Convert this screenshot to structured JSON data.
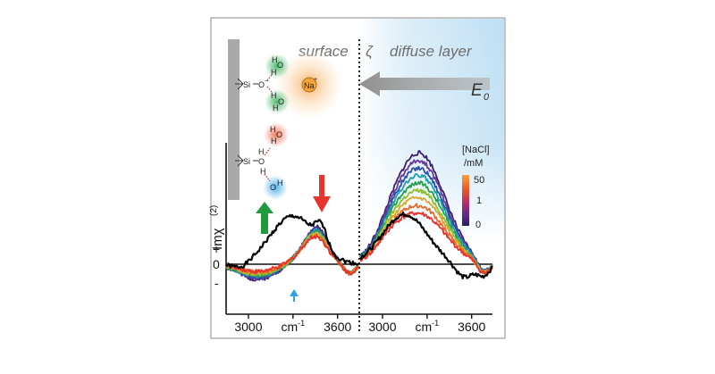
{
  "figure": {
    "region_surface": "surface",
    "region_zeta": "ζ",
    "region_diffuse": "diffuse layer",
    "field_label": "E",
    "field_sub": "0",
    "ion_label": "Na",
    "ion_charge": "+",
    "y_axis_label": "Imχ",
    "y_axis_sup": "(2)",
    "y_plus": "+",
    "y_zero": "0",
    "y_minus": "-",
    "colorbar_title_1": "[NaCl]",
    "colorbar_title_2": "/mM",
    "colorbar_ticks": [
      "50",
      "1",
      "0"
    ],
    "molecules": {
      "si": "Si",
      "o": "O",
      "o_minus": "−",
      "h": "H",
      "water_o": "O",
      "water_h": "H",
      "oh_o": "O",
      "oh_h": "H"
    },
    "colors": {
      "surface_bg": "#ffffff",
      "diffuse_bg": "#cfe7f6",
      "wall": "#a9a9a9",
      "arrow_gray": "#8c8c8c",
      "arrow_red": "#e8352b",
      "arrow_green": "#1f9a3c",
      "arrow_blue": "#2aa3e0",
      "ion_glow": "#f6b067",
      "ion_core": "#f2a33a"
    }
  },
  "chart_data": {
    "type": "line",
    "panels": [
      {
        "name": "surface",
        "x_ticks": [
          "3000",
          "cm-1",
          "3600"
        ],
        "x_tick_values": [
          3000,
          3300,
          3600
        ],
        "xlim": [
          2850,
          3740
        ],
        "ylim": [
          -1.0,
          2.7
        ],
        "zero_line": 0
      },
      {
        "name": "diffuse layer",
        "x_ticks": [
          "3000",
          "cm-1",
          "3600"
        ],
        "x_tick_values": [
          3000,
          3300,
          3600
        ],
        "xlim": [
          2850,
          3740
        ],
        "ylim": [
          -1.0,
          2.7
        ],
        "zero_line": 0
      }
    ],
    "colorbar": {
      "label": "[NaCl] /mM",
      "ticks": [
        "50",
        "1",
        "0"
      ],
      "colors": [
        "#f9a23a",
        "#e8542a",
        "#b52d6a",
        "#5b2a8a",
        "#2a1f5e"
      ]
    },
    "series_colors": [
      "#000000",
      "#3a1f6e",
      "#6a3a9a",
      "#2a4fb0",
      "#1aa0b0",
      "#26a04a",
      "#8cbf2a",
      "#d9a830",
      "#e86a2a",
      "#e8302a"
    ]
  }
}
